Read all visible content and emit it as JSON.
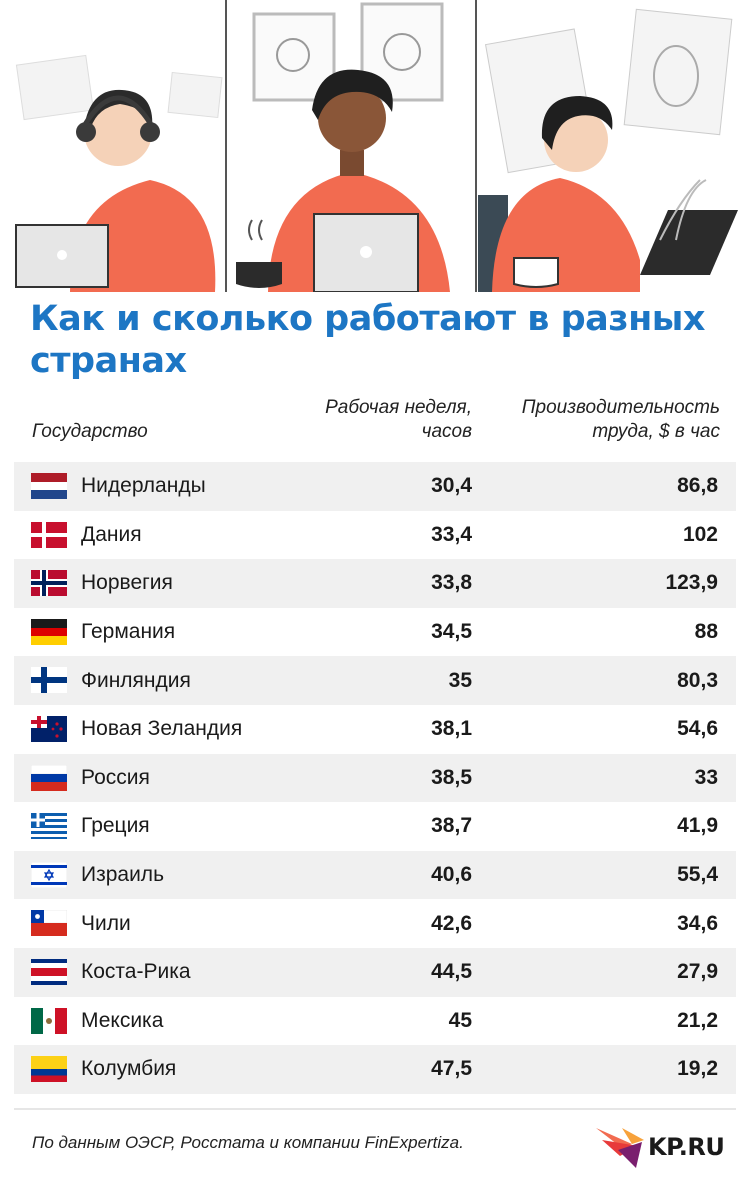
{
  "title": "Как и сколько работают в разных странах",
  "headers": {
    "country": "Государство",
    "week_line1": "Рабочая неделя,",
    "week_line2": "часов",
    "prod_line1": "Производительность",
    "prod_line2": "труда, $ в час"
  },
  "chart_data": {
    "type": "table",
    "columns": [
      "Государство",
      "Рабочая неделя, часов",
      "Производительность труда, $ в час"
    ],
    "rows": [
      {
        "country": "Нидерланды",
        "flag": "netherlands-flag",
        "week": "30,4",
        "prod": "86,8"
      },
      {
        "country": "Дания",
        "flag": "denmark-flag",
        "week": "33,4",
        "prod": "102"
      },
      {
        "country": "Норвегия",
        "flag": "norway-flag",
        "week": "33,8",
        "prod": "123,9"
      },
      {
        "country": "Германия",
        "flag": "germany-flag",
        "week": "34,5",
        "prod": "88"
      },
      {
        "country": "Финляндия",
        "flag": "finland-flag",
        "week": "35",
        "prod": "80,3"
      },
      {
        "country": "Новая Зеландия",
        "flag": "new-zealand-flag",
        "week": "38,1",
        "prod": "54,6"
      },
      {
        "country": "Россия",
        "flag": "russia-flag",
        "week": "38,5",
        "prod": "33"
      },
      {
        "country": "Греция",
        "flag": "greece-flag",
        "week": "38,7",
        "prod": "41,9"
      },
      {
        "country": "Израиль",
        "flag": "israel-flag",
        "week": "40,6",
        "prod": "55,4"
      },
      {
        "country": "Чили",
        "flag": "chile-flag",
        "week": "42,6",
        "prod": "34,6"
      },
      {
        "country": "Коста-Рика",
        "flag": "costa-rica-flag",
        "week": "44,5",
        "prod": "27,9"
      },
      {
        "country": "Мексика",
        "flag": "mexico-flag",
        "week": "45",
        "prod": "21,2"
      },
      {
        "country": "Колумбия",
        "flag": "colombia-flag",
        "week": "47,5",
        "prod": "19,2"
      }
    ]
  },
  "footer": {
    "source": "По данным ОЭСР, Росстата и компании FinExpertiza.",
    "logo_text": "KP.RU"
  },
  "colors": {
    "title": "#1d76c4",
    "accent": "#f26b50",
    "stripe": "#f0f0f0"
  }
}
